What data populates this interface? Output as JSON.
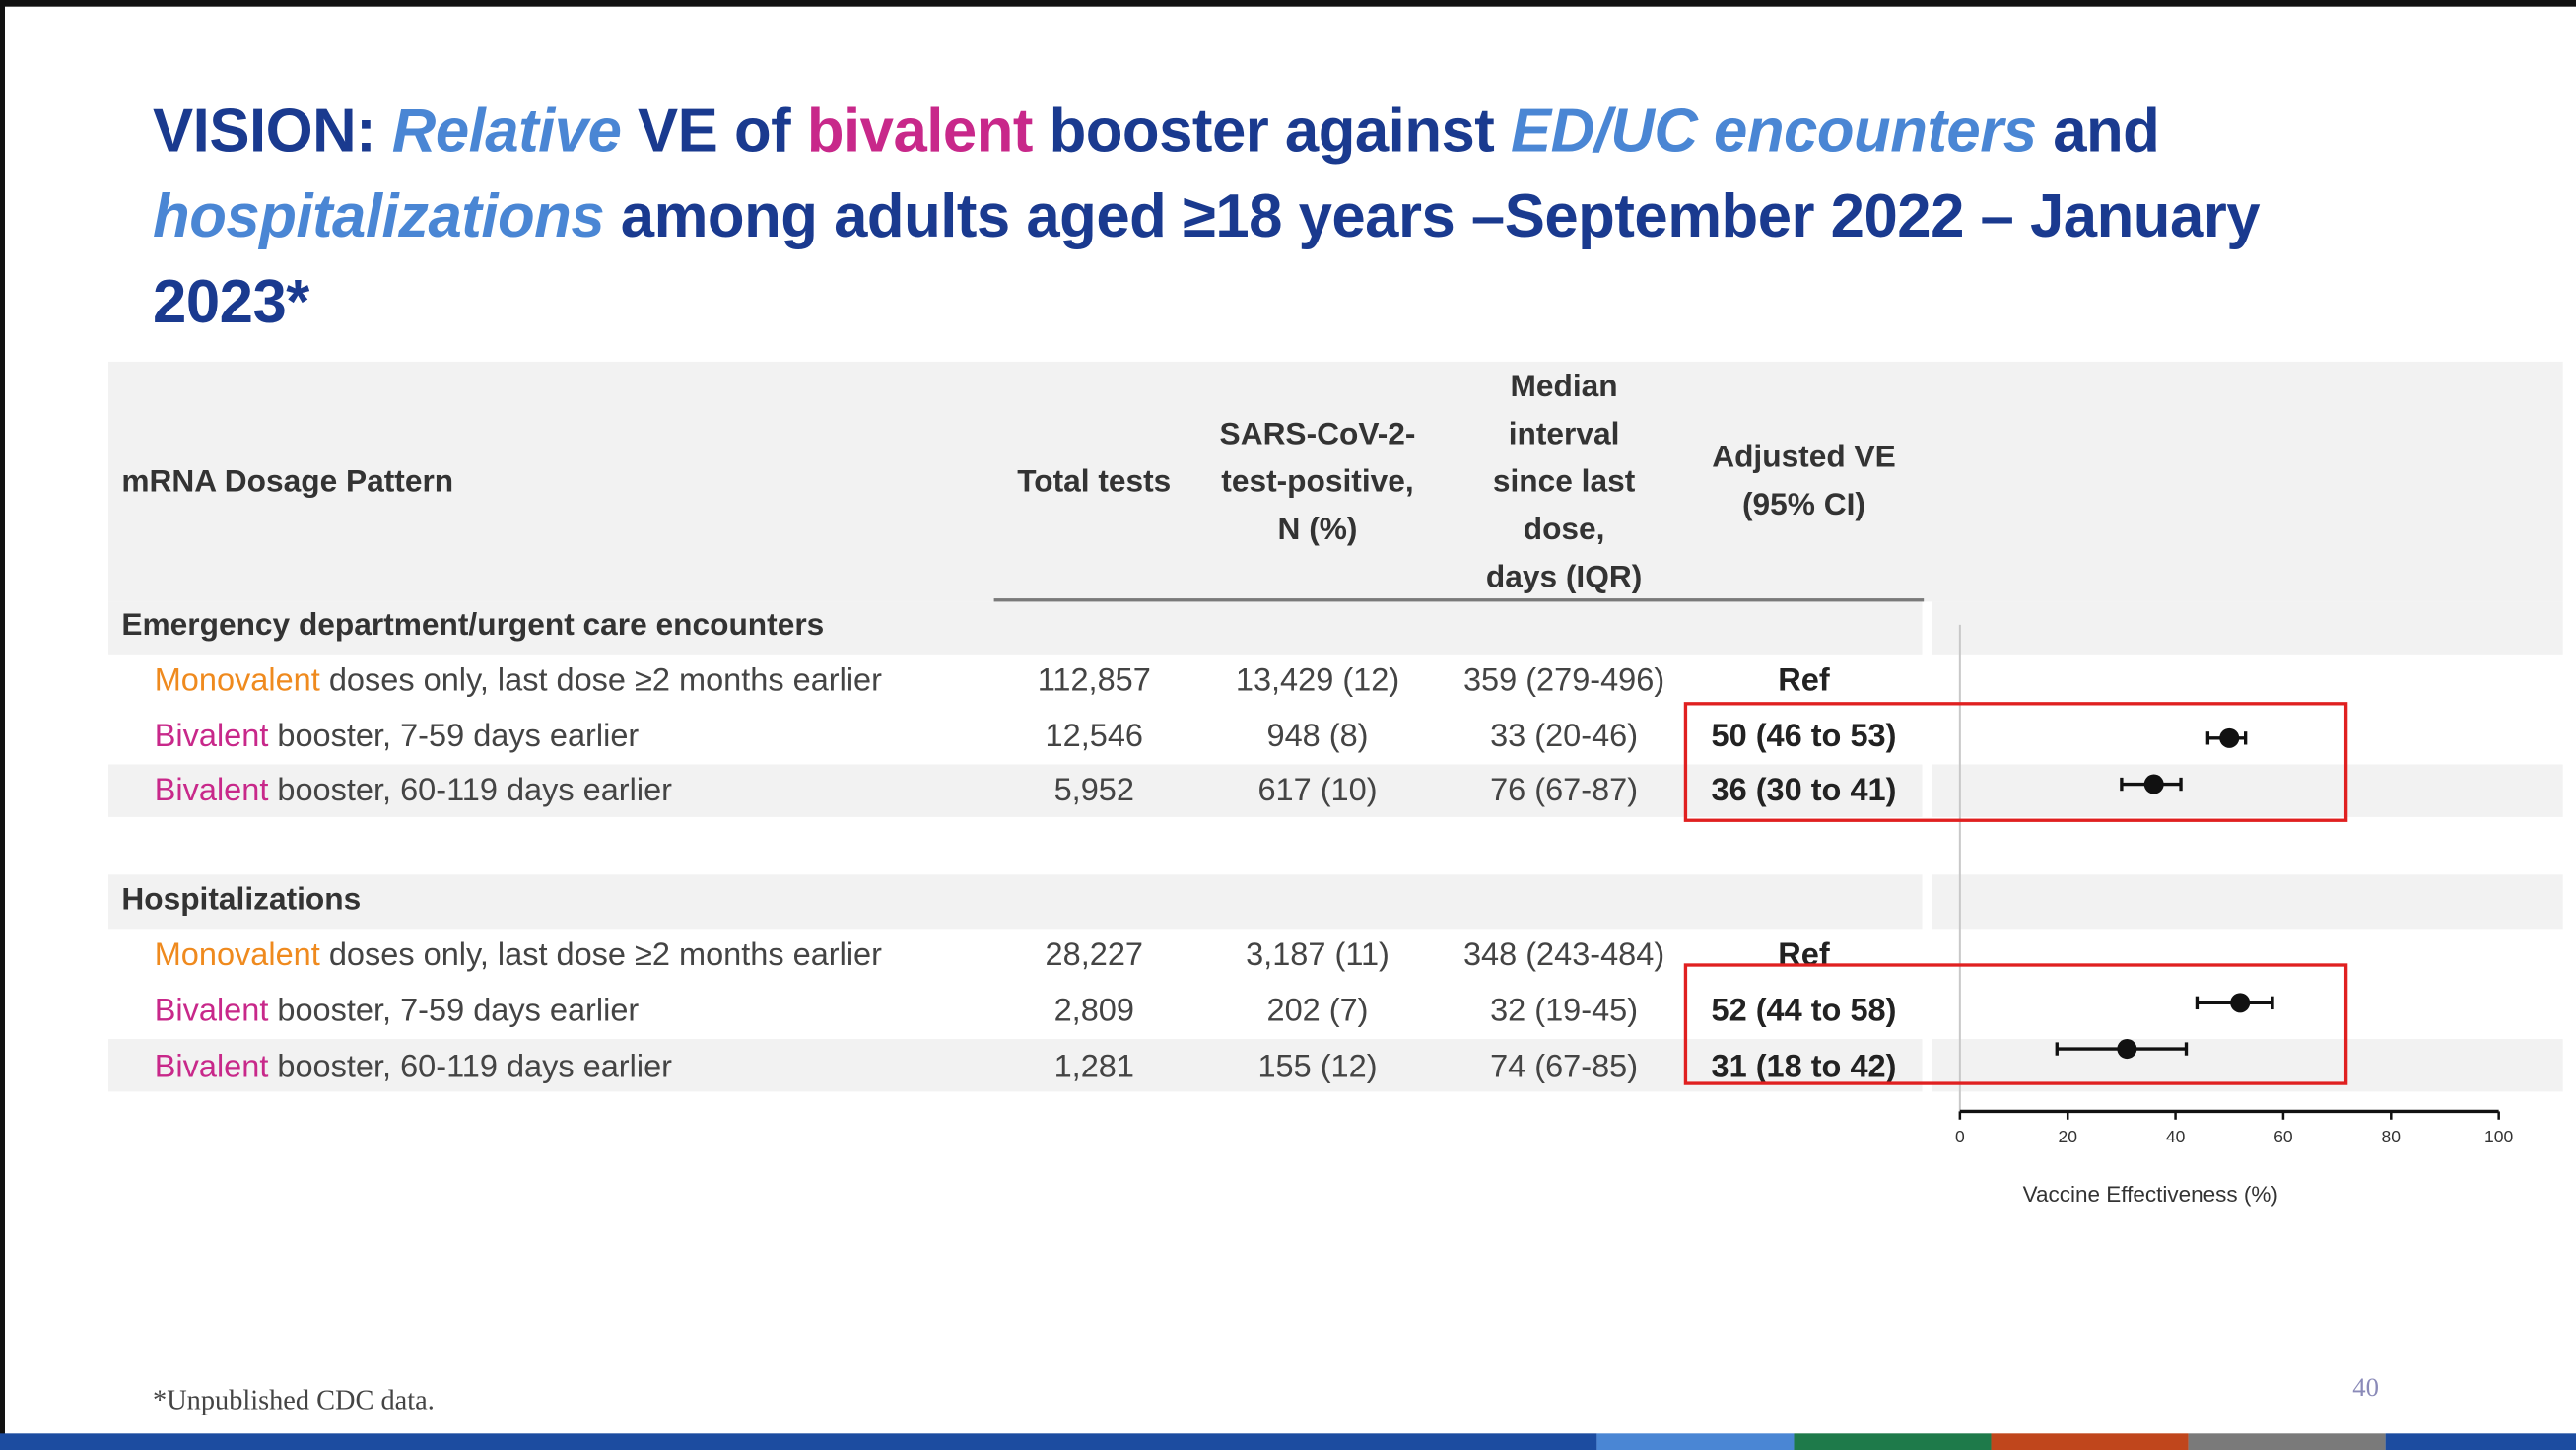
{
  "title": {
    "w1": "VISION: ",
    "w2": "Relative",
    "w3": " VE of ",
    "w4": "bivalent",
    "w5": " booster against ",
    "w6": "ED/UC encounters",
    "w7": " and ",
    "w8": "hospitalizations",
    "w9": " among adults aged ≥18 years –September 2022 – January 2023*"
  },
  "table": {
    "headers": {
      "pattern": "mRNA Dosage Pattern",
      "tests": "Total tests",
      "positive_l1": "SARS-CoV-2-",
      "positive_l2": "test-positive,",
      "positive_l3": "N (%)",
      "median_l1": "Median",
      "median_l2": "interval",
      "median_l3": "since last",
      "median_l4": "dose,",
      "median_l5": "days (IQR)",
      "ve_l1": "Adjusted VE",
      "ve_l2": "(95% CI)"
    },
    "sections": [
      {
        "label": "Emergency department/urgent care encounters",
        "rows": [
          {
            "lead": "Monovalent",
            "rest": " doses only, last dose ≥2 months earlier",
            "tests": "112,857",
            "positive": "13,429 (12)",
            "median": "359 (279-496)",
            "ve": "Ref"
          },
          {
            "lead": "Bivalent",
            "rest": " booster, 7-59 days earlier",
            "tests": "12,546",
            "positive": "948 (8)",
            "median": "33 (20-46)",
            "ve": "50 (46 to 53)"
          },
          {
            "lead": "Bivalent",
            "rest": " booster, 60-119 days earlier",
            "tests": "5,952",
            "positive": "617 (10)",
            "median": "76 (67-87)",
            "ve": "36 (30 to 41)"
          }
        ]
      },
      {
        "label": "Hospitalizations",
        "rows": [
          {
            "lead": "Monovalent",
            "rest": " doses only, last dose ≥2 months earlier",
            "tests": "28,227",
            "positive": "3,187 (11)",
            "median": "348 (243-484)",
            "ve": "Ref"
          },
          {
            "lead": "Bivalent",
            "rest": " booster, 7-59 days earlier",
            "tests": "2,809",
            "positive": "202 (7)",
            "median": "32 (19-45)",
            "ve": "52 (44 to 58)"
          },
          {
            "lead": "Bivalent",
            "rest": " booster, 60-119 days earlier",
            "tests": "1,281",
            "positive": "155 (12)",
            "median": "74 (67-85)",
            "ve": "31 (18 to 42)"
          }
        ]
      }
    ]
  },
  "chart_data": {
    "type": "scatter",
    "xlabel": "Vaccine Effectiveness (%)",
    "xlim": [
      0,
      100
    ],
    "xticks": [
      "0",
      "20",
      "40",
      "60",
      "80",
      "100"
    ],
    "points": [
      {
        "row": "ED/UC Bivalent 7-59 days",
        "ve": 50,
        "lo": 46,
        "hi": 53
      },
      {
        "row": "ED/UC Bivalent 60-119 days",
        "ve": 36,
        "lo": 30,
        "hi": 41
      },
      {
        "row": "Hosp Bivalent 7-59 days",
        "ve": 52,
        "lo": 44,
        "hi": 58
      },
      {
        "row": "Hosp Bivalent 60-119 days",
        "ve": 31,
        "lo": 18,
        "hi": 42
      }
    ]
  },
  "footnote": "*Unpublished CDC data.",
  "page_number": "40",
  "colors": {
    "title": "#1a3a8f",
    "title_italic": "#4a86d4",
    "bivalent": "#c8288a",
    "monovalent": "#ef8a1e",
    "highlight_box": "#e02020",
    "bottom_bar": [
      "#1c4ca0",
      "#4a86d4",
      "#1e7a4a",
      "#c0461c",
      "#7a7a7a",
      "#1c4ca0"
    ]
  }
}
